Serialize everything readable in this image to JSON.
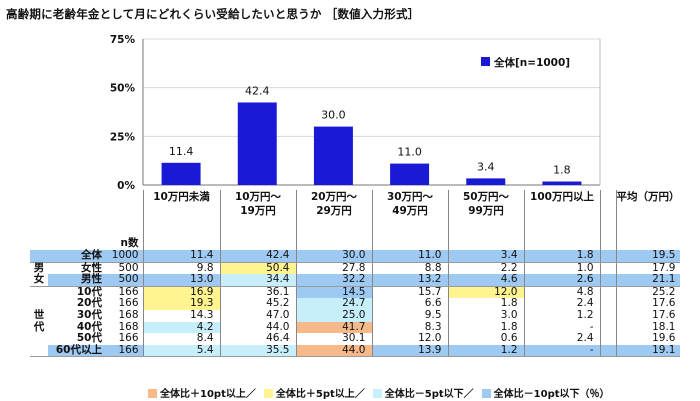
{
  "title": "高齢期に老齢年金として月にどれくらい受給したいと思うか ［数値入力形式］",
  "chart_data": {
    "type": "bar",
    "categories": [
      "10万円未満",
      "10万円～19万円",
      "20万円～29万円",
      "30万円～49万円",
      "50万円～99万円",
      "100万円以上"
    ],
    "category_lines": [
      [
        "10万円未満"
      ],
      [
        "10万円～",
        "19万円"
      ],
      [
        "20万円～",
        "29万円"
      ],
      [
        "30万円～",
        "49万円"
      ],
      [
        "50万円～",
        "99万円"
      ],
      [
        "100万円以上"
      ]
    ],
    "series": [
      {
        "name": "全体[n=1000]",
        "values": [
          11.4,
          42.4,
          30.0,
          11.0,
          3.4,
          1.8
        ],
        "color": "#1a1ad6"
      }
    ],
    "value_labels": [
      "11.4",
      "42.4",
      "30.0",
      "11.0",
      "3.4",
      "1.8"
    ],
    "yticks": [
      "75%",
      "50%",
      "25%",
      "0%"
    ],
    "ylim": [
      0,
      75
    ],
    "legend_position": "top-right"
  },
  "table": {
    "n_header": "n数",
    "avg_header": "平均（万円）",
    "groups": [
      {
        "label": "",
        "rows": [
          {
            "label": "全体",
            "n": "1000",
            "values": [
              "11.4",
              "42.4",
              "30.0",
              "11.0",
              "3.4",
              "1.8"
            ],
            "avg": "19.5",
            "hl": [
              "",
              "",
              "",
              "",
              "",
              ""
            ]
          }
        ]
      },
      {
        "label": "男女",
        "rows": [
          {
            "label": "女性",
            "n": "500",
            "values": [
              "9.8",
              "50.4",
              "27.8",
              "8.8",
              "2.2",
              "1.0"
            ],
            "avg": "17.9",
            "hl": [
              "",
              "y",
              "",
              "",
              "",
              ""
            ]
          },
          {
            "label": "男性",
            "n": "500",
            "values": [
              "13.0",
              "34.4",
              "32.2",
              "13.2",
              "4.6",
              "2.6"
            ],
            "avg": "21.1",
            "hl": [
              "",
              "c",
              "",
              "",
              "",
              ""
            ]
          }
        ]
      },
      {
        "label": "世代",
        "rows": [
          {
            "label": "10代",
            "n": "166",
            "values": [
              "16.9",
              "36.1",
              "14.5",
              "15.7",
              "12.0",
              "4.8"
            ],
            "avg": "25.2",
            "hl": [
              "y",
              "",
              "b",
              "",
              "y",
              ""
            ]
          },
          {
            "label": "20代",
            "n": "166",
            "values": [
              "19.3",
              "45.2",
              "24.7",
              "6.6",
              "1.8",
              "2.4"
            ],
            "avg": "17.6",
            "hl": [
              "y",
              "",
              "c",
              "",
              "",
              ""
            ]
          },
          {
            "label": "30代",
            "n": "168",
            "values": [
              "14.3",
              "47.0",
              "25.0",
              "9.5",
              "3.0",
              "1.2"
            ],
            "avg": "17.6",
            "hl": [
              "",
              "",
              "c",
              "",
              "",
              ""
            ]
          },
          {
            "label": "40代",
            "n": "168",
            "values": [
              "4.2",
              "44.0",
              "41.7",
              "8.3",
              "1.8",
              "-"
            ],
            "avg": "18.1",
            "hl": [
              "c",
              "",
              "o",
              "",
              "",
              ""
            ]
          },
          {
            "label": "50代",
            "n": "166",
            "values": [
              "8.4",
              "46.4",
              "30.1",
              "12.0",
              "0.6",
              "2.4"
            ],
            "avg": "19.6",
            "hl": [
              "",
              "",
              "",
              "",
              "",
              ""
            ]
          },
          {
            "label": "60代以上",
            "n": "166",
            "values": [
              "5.4",
              "35.5",
              "44.0",
              "13.9",
              "1.2",
              "-"
            ],
            "avg": "19.1",
            "hl": [
              "c",
              "c",
              "o",
              "",
              "",
              ""
            ]
          }
        ]
      }
    ]
  },
  "highlight_legend": [
    {
      "label": "全体比＋10pt以上／",
      "color": "#f7b98a"
    },
    {
      "label": "全体比＋5pt以上／",
      "color": "#fff48f"
    },
    {
      "label": "全体比－5pt以下／",
      "color": "#c7eefb"
    },
    {
      "label": "全体比－10pt以下（％）",
      "color": "#9ec9f2"
    }
  ]
}
